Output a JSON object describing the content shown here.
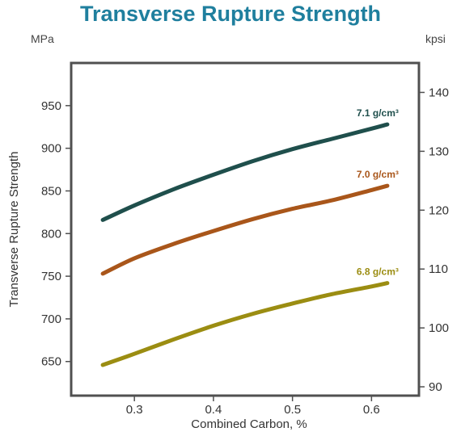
{
  "colors": {
    "title": "#1f7f9e",
    "axis": "#505050",
    "series": [
      "#1f4f4c",
      "#a9561a",
      "#9b8d12"
    ]
  },
  "chart_data": {
    "type": "line",
    "title": "Transverse Rupture Strength",
    "xlabel": "Combined Carbon, %",
    "ylabel": "Transverse Rupture Strength",
    "y_unit_left": "MPa",
    "y_unit_right": "kpsi",
    "xlim": [
      0.22,
      0.66
    ],
    "ylim": [
      610,
      1000
    ],
    "y2lim": [
      88.5,
      145
    ],
    "x_ticks": [
      "0.3",
      "0.4",
      "0.5",
      "0.6"
    ],
    "y_ticks": [
      "650",
      "700",
      "750",
      "800",
      "850",
      "900",
      "950"
    ],
    "y2_ticks": [
      "90",
      "100",
      "110",
      "120",
      "130",
      "140"
    ],
    "grid": false,
    "series": [
      {
        "name": "7.1 g/cm³",
        "x": [
          0.26,
          0.3,
          0.35,
          0.4,
          0.45,
          0.5,
          0.55,
          0.6,
          0.62
        ],
        "y": [
          816,
          833,
          852,
          869,
          885,
          899,
          911,
          923,
          928
        ]
      },
      {
        "name": "7.0 g/cm³",
        "x": [
          0.26,
          0.3,
          0.35,
          0.4,
          0.45,
          0.5,
          0.55,
          0.6,
          0.62
        ],
        "y": [
          753,
          771,
          788,
          803,
          817,
          829,
          839,
          851,
          856
        ]
      },
      {
        "name": "6.8 g/cm³",
        "x": [
          0.26,
          0.3,
          0.35,
          0.4,
          0.45,
          0.5,
          0.55,
          0.6,
          0.62
        ],
        "y": [
          646,
          659,
          676,
          692,
          706,
          718,
          729,
          738,
          742
        ]
      }
    ]
  }
}
